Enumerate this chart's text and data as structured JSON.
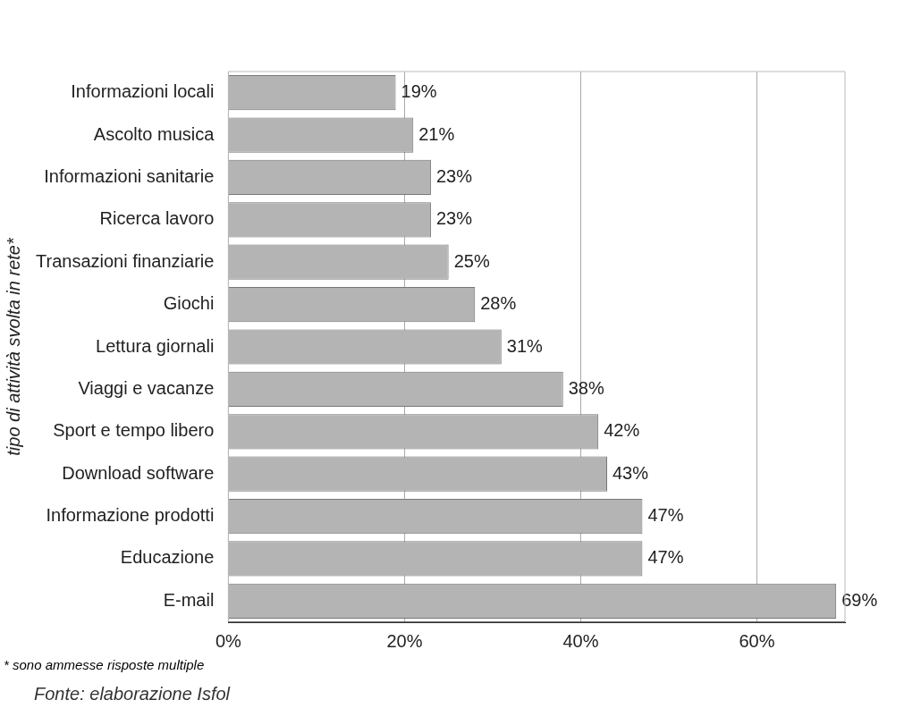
{
  "chart_data": {
    "type": "bar",
    "orientation": "horizontal",
    "ylabel": "tipo di attività svolta in rete*",
    "categories": [
      "Informazioni locali",
      "Ascolto musica",
      "Informazioni sanitarie",
      "Ricerca lavoro",
      "Transazioni finanziarie",
      "Giochi",
      "Lettura giornali",
      "Viaggi e vacanze",
      "Sport e tempo libero",
      "Download software",
      "Informazione prodotti",
      "Educazione",
      "E-mail"
    ],
    "values": [
      19,
      21,
      23,
      23,
      25,
      28,
      31,
      38,
      42,
      43,
      47,
      47,
      69
    ],
    "value_labels": [
      "19%",
      "21%",
      "23%",
      "23%",
      "25%",
      "28%",
      "31%",
      "38%",
      "42%",
      "43%",
      "47%",
      "47%",
      "69%"
    ],
    "color": "#b4b4b4",
    "xlim": [
      0,
      70
    ],
    "xticks": [
      {
        "value": 0,
        "label": "0%"
      },
      {
        "value": 20,
        "label": "20%"
      },
      {
        "value": 40,
        "label": "40%"
      },
      {
        "value": 60,
        "label": "60%"
      }
    ],
    "grid": "x",
    "annotations": [
      "* sono ammesse risposte multiple",
      "Fonte:  elaborazione Isfol"
    ]
  }
}
